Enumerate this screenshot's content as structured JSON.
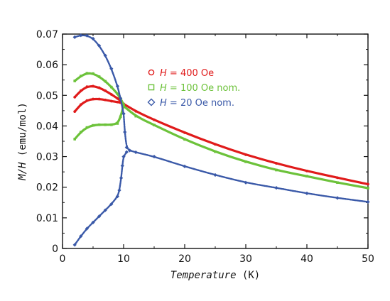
{
  "chart_data": {
    "type": "scatter",
    "title": "",
    "xlabel": {
      "italic": "Temperature",
      "unit": " (K)"
    },
    "ylabel": {
      "prefix_italic": "M/H",
      "unit": " (emu/mol)"
    },
    "xlim": [
      0,
      50
    ],
    "ylim": [
      0,
      0.07
    ],
    "x_ticks": [
      0,
      10,
      20,
      30,
      40,
      50
    ],
    "y_ticks": [
      0,
      0.01,
      0.02,
      0.03,
      0.04,
      0.05,
      0.06,
      0.07
    ],
    "x_tick_labels": [
      "0",
      "10",
      "20",
      "30",
      "40",
      "50"
    ],
    "y_tick_labels": [
      "0",
      "0.01",
      "0.02",
      "0.03",
      "0.04",
      "0.05",
      "0.06",
      "0.07"
    ],
    "grid": false,
    "legend_position": "upper-middle",
    "series": [
      {
        "name": "H = 400 Oe",
        "legend": {
          "var": "H",
          "text": " = 400 Oe"
        },
        "color": "#e01b1b",
        "marker": "circle",
        "segments": [
          {
            "x": [
              2,
              3,
              4,
              5,
              6,
              7,
              8,
              9,
              9.5,
              10
            ],
            "y": [
              0.0494,
              0.0515,
              0.0528,
              0.053,
              0.0525,
              0.0515,
              0.0503,
              0.049,
              0.0482,
              0.0472
            ]
          },
          {
            "x": [
              2,
              3,
              4,
              5,
              6,
              7,
              8,
              9,
              9.5,
              10
            ],
            "y": [
              0.0447,
              0.047,
              0.0483,
              0.0488,
              0.0488,
              0.0485,
              0.0481,
              0.0478,
              0.0476,
              0.0472
            ]
          },
          {
            "x": [
              10,
              12,
              15,
              20,
              25,
              30,
              35,
              40,
              45,
              50
            ],
            "y": [
              0.0472,
              0.0448,
              0.042,
              0.0378,
              0.034,
              0.0306,
              0.0278,
              0.0253,
              0.0231,
              0.021
            ]
          }
        ]
      },
      {
        "name": "H = 100 Oe nom.",
        "legend": {
          "var": "H",
          "text": " = 100 Oe nom."
        },
        "color": "#6cc23a",
        "marker": "square",
        "segments": [
          {
            "x": [
              2,
              3,
              4,
              5,
              6,
              7,
              8,
              9,
              9.5,
              10
            ],
            "y": [
              0.0547,
              0.0563,
              0.0572,
              0.0571,
              0.0561,
              0.0546,
              0.0527,
              0.0505,
              0.049,
              0.047
            ]
          },
          {
            "x": [
              2,
              3,
              4,
              5,
              6,
              7,
              8,
              9,
              9.5,
              10
            ],
            "y": [
              0.0357,
              0.038,
              0.0395,
              0.0402,
              0.0404,
              0.0404,
              0.0404,
              0.0408,
              0.043,
              0.0465
            ]
          },
          {
            "x": [
              10,
              12,
              15,
              20,
              25,
              30,
              35,
              40,
              45,
              50
            ],
            "y": [
              0.0465,
              0.0432,
              0.0403,
              0.0356,
              0.0316,
              0.0283,
              0.0256,
              0.0236,
              0.0215,
              0.0197
            ]
          }
        ]
      },
      {
        "name": "H = 20 Oe nom.",
        "legend": {
          "var": "H",
          "text": " = 20 Oe nom."
        },
        "color": "#3a59a8",
        "marker": "diamond",
        "segments": [
          {
            "x": [
              2,
              3,
              4,
              5,
              6,
              7,
              8,
              9,
              9.5,
              10
            ],
            "y": [
              0.069,
              0.0696,
              0.0695,
              0.0685,
              0.0662,
              0.063,
              0.0587,
              0.053,
              0.049,
              0.044
            ]
          },
          {
            "x": [
              2,
              3,
              4,
              5,
              6,
              7,
              8,
              9,
              9.3,
              9.6,
              9.8,
              10,
              10.5
            ],
            "y": [
              0.0012,
              0.004,
              0.0065,
              0.0085,
              0.0105,
              0.0125,
              0.0145,
              0.017,
              0.019,
              0.023,
              0.027,
              0.03,
              0.0315
            ]
          },
          {
            "x": [
              10,
              10.2,
              10.5,
              11,
              12,
              15,
              20,
              25,
              30,
              35,
              40,
              45,
              50
            ],
            "y": [
              0.044,
              0.038,
              0.033,
              0.032,
              0.0314,
              0.03,
              0.0268,
              0.024,
              0.0215,
              0.0198,
              0.018,
              0.0165,
              0.0152
            ]
          }
        ]
      }
    ]
  }
}
